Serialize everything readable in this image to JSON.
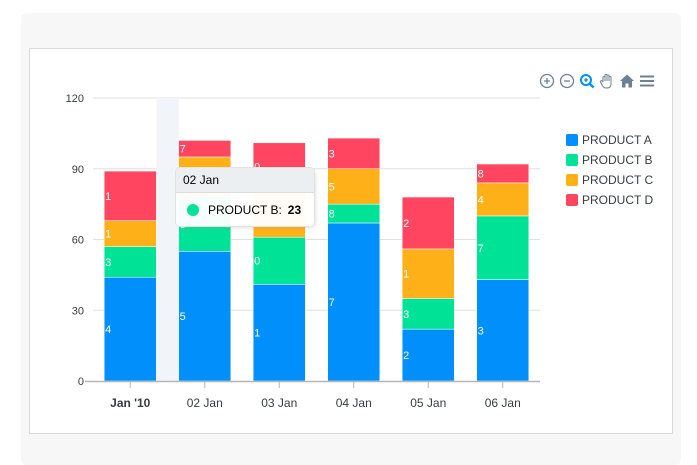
{
  "toolbar": {
    "icons": [
      "zoom-in-icon",
      "zoom-out-icon",
      "selection-zoom-icon",
      "pan-hand-icon",
      "reset-home-icon",
      "menu-icon"
    ],
    "active_icon": "selection-zoom-icon"
  },
  "colors": {
    "PRODUCT A": "#008ffb",
    "PRODUCT B": "#00e396",
    "PRODUCT C": "#feb019",
    "PRODUCT D": "#ff4560",
    "grid": "#e0e0e0",
    "axis_text": "#373d3f",
    "toolbar_icon": "#6e8192",
    "toolbar_active": "#008ffb"
  },
  "tooltip": {
    "title": "02 Jan",
    "series": "PRODUCT B:",
    "value": "23",
    "color": "#00e396"
  },
  "chart_data": {
    "type": "bar",
    "stacked": true,
    "title": "",
    "xlabel": "",
    "ylabel": "",
    "categories": [
      "Jan '10",
      "02 Jan",
      "03 Jan",
      "04 Jan",
      "05 Jan",
      "06 Jan"
    ],
    "bold_categories": [
      "Jan '10"
    ],
    "series": [
      {
        "name": "PRODUCT A",
        "values": [
          44,
          55,
          41,
          67,
          22,
          43
        ]
      },
      {
        "name": "PRODUCT B",
        "values": [
          13,
          23,
          20,
          8,
          13,
          27
        ]
      },
      {
        "name": "PRODUCT C",
        "values": [
          11,
          17,
          20,
          15,
          21,
          14
        ]
      },
      {
        "name": "PRODUCT D",
        "values": [
          21,
          7,
          20,
          13,
          22,
          8
        ]
      }
    ],
    "ylim": [
      0,
      120
    ],
    "yticks": [
      0,
      30,
      60,
      90,
      120
    ],
    "grid": true,
    "legend_position": "right",
    "hovered_category": "02 Jan",
    "data_labels_clipped": true
  }
}
